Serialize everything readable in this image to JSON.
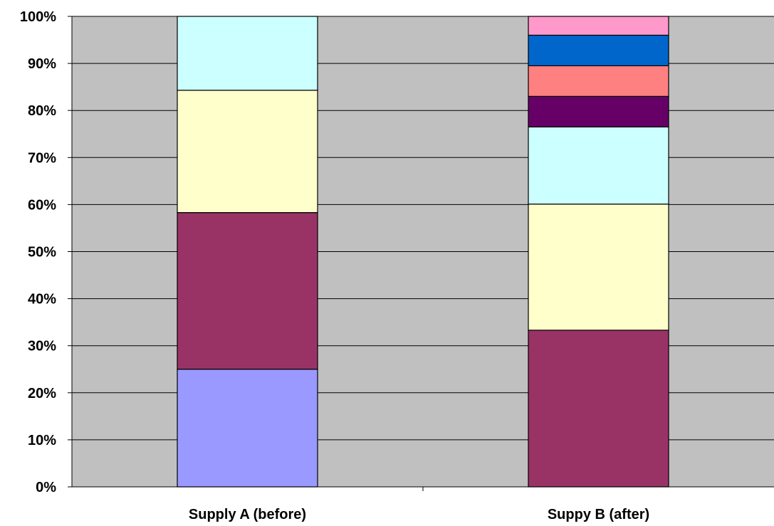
{
  "chart_data": {
    "type": "bar",
    "stacked": true,
    "percent_stacked": true,
    "title": "",
    "xlabel": "",
    "ylabel": "",
    "ylim": [
      0,
      100
    ],
    "y_ticks": [
      0,
      10,
      20,
      30,
      40,
      50,
      60,
      70,
      80,
      90,
      100
    ],
    "y_tick_labels": [
      "0%",
      "10%",
      "20%",
      "30%",
      "40%",
      "50%",
      "60%",
      "70%",
      "80%",
      "90%",
      "100%"
    ],
    "categories": [
      "Supply A (before)",
      "Suppy B (after)"
    ],
    "grid": true,
    "legend": "none",
    "plot_background": "#C0C0C0",
    "series": [
      {
        "color": "#9999FF",
        "values": [
          25,
          0
        ]
      },
      {
        "color": "#993366",
        "values": [
          33.3,
          33.3
        ]
      },
      {
        "color": "#FFFFCC",
        "values": [
          26,
          26.8
        ]
      },
      {
        "color": "#CCFFFF",
        "values": [
          15.7,
          16.4
        ]
      },
      {
        "color": "#660066",
        "values": [
          0,
          6.5
        ]
      },
      {
        "color": "#FF8080",
        "values": [
          0,
          6.5
        ]
      },
      {
        "color": "#0066CC",
        "values": [
          0,
          6.5
        ]
      },
      {
        "color": "#FF99CC",
        "values": [
          0,
          4
        ]
      }
    ]
  }
}
